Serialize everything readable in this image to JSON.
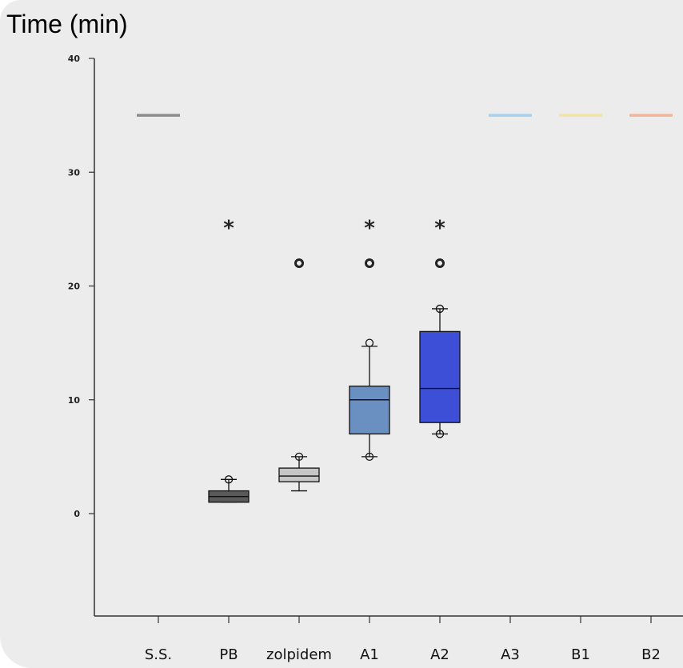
{
  "chart_data": {
    "type": "box",
    "title": "Time (min)",
    "xlabel": "",
    "ylabel": "",
    "ylim": [
      -9,
      40
    ],
    "yticks": [
      "0",
      "10",
      "20",
      "30",
      "40"
    ],
    "y_tick_values": [
      0,
      10,
      20,
      30,
      40
    ],
    "grid": false,
    "categories": [
      "S.S.",
      "PB",
      "zolpidem",
      "A1",
      "A2",
      "A3",
      "B1",
      "B2"
    ],
    "boxes": [
      {
        "category": "S.S.",
        "line_at": 35,
        "color": "#8c8c8c"
      },
      {
        "category": "PB",
        "min": 1,
        "q1": 1,
        "median": 1.5,
        "q3": 2,
        "max": 3,
        "outliers": [
          3
        ],
        "color": "#5a5a5a",
        "star": true,
        "circle_marker": false
      },
      {
        "category": "zolpidem",
        "min": 2,
        "q1": 2.8,
        "median": 3.3,
        "q3": 4,
        "max": 5,
        "outliers": [
          5
        ],
        "color": "#c6c6c6",
        "star": false,
        "circle_marker": true
      },
      {
        "category": "A1",
        "min": 5,
        "q1": 7,
        "median": 10,
        "q3": 11.2,
        "max": 14.7,
        "outliers": [
          5,
          15
        ],
        "color": "#6a8fc1",
        "star": true,
        "circle_marker": true
      },
      {
        "category": "A2",
        "min": 7,
        "q1": 8,
        "median": 11,
        "q3": 16,
        "max": 18,
        "outliers": [
          7,
          18
        ],
        "color": "#3d4fd6",
        "star": true,
        "circle_marker": true
      },
      {
        "category": "A3",
        "line_at": 35,
        "color": "#a6d2ef"
      },
      {
        "category": "B1",
        "line_at": 35,
        "color": "#f4e3a0"
      },
      {
        "category": "B2",
        "line_at": 35,
        "color": "#f2b597"
      }
    ],
    "annotations": [
      {
        "text": "*",
        "category": "PB",
        "y": 25.5
      },
      {
        "text": "*",
        "category": "A1",
        "y": 25.5
      },
      {
        "text": "*",
        "category": "A2",
        "y": 25.5
      },
      {
        "text": "o",
        "category": "zolpidem",
        "y": 22
      },
      {
        "text": "o",
        "category": "A1",
        "y": 22
      },
      {
        "text": "o",
        "category": "A2",
        "y": 22
      }
    ]
  }
}
